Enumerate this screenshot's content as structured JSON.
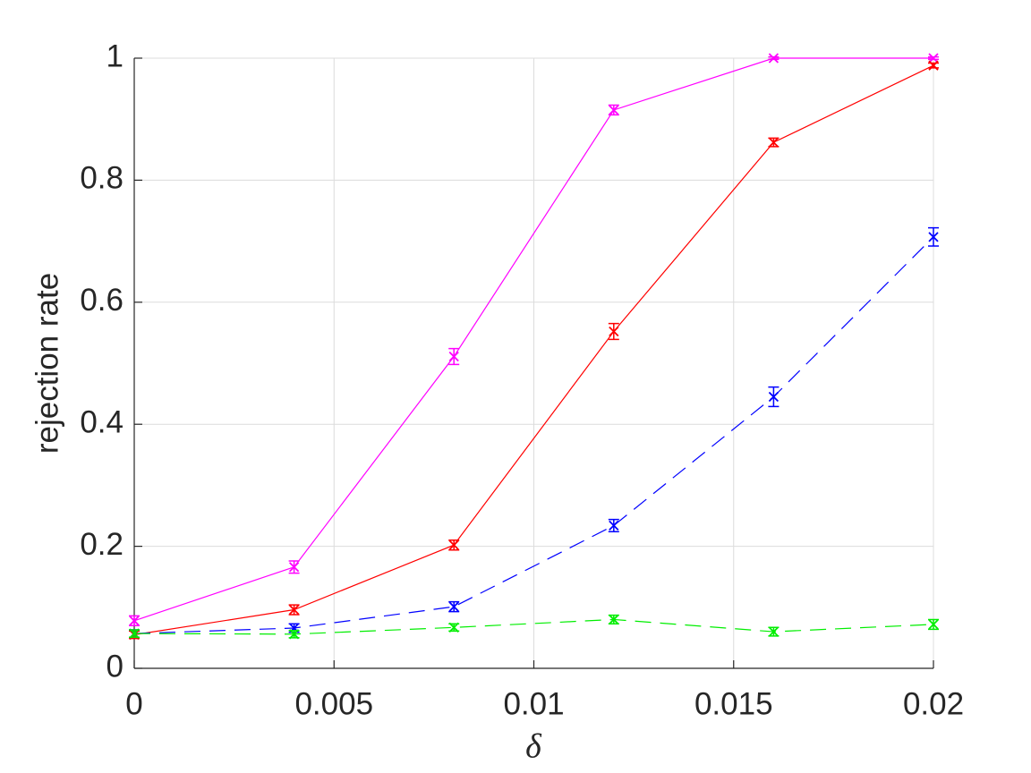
{
  "chart_data": {
    "type": "line",
    "x": [
      0,
      0.004,
      0.008,
      0.012,
      0.016,
      0.02
    ],
    "xlabel": "δ",
    "ylabel": "rejection rate",
    "xlim": [
      0,
      0.02
    ],
    "ylim": [
      0,
      1
    ],
    "xticks": [
      0,
      0.005,
      0.01,
      0.015,
      0.02
    ],
    "yticks": [
      0,
      0.2,
      0.4,
      0.6,
      0.8,
      1
    ],
    "grid": true,
    "series": [
      {
        "color": "#ff00ff",
        "dash": "solid",
        "values": [
          0.078,
          0.166,
          0.511,
          0.915,
          1.0,
          1.0
        ],
        "errors": [
          0.008,
          0.01,
          0.013,
          0.008,
          0.002,
          0.002
        ]
      },
      {
        "color": "#ff0000",
        "dash": "solid",
        "values": [
          0.055,
          0.096,
          0.202,
          0.552,
          0.862,
          0.988
        ],
        "errors": [
          0.006,
          0.008,
          0.008,
          0.013,
          0.007,
          0.004
        ]
      },
      {
        "color": "#0000ff",
        "dash": "dashed",
        "values": [
          0.057,
          0.066,
          0.101,
          0.234,
          0.445,
          0.707
        ],
        "errors": [
          0.006,
          0.007,
          0.008,
          0.01,
          0.016,
          0.015
        ]
      },
      {
        "color": "#00ee00",
        "dash": "dashed",
        "values": [
          0.057,
          0.056,
          0.067,
          0.08,
          0.06,
          0.072
        ],
        "errors": [
          0.006,
          0.006,
          0.006,
          0.007,
          0.007,
          0.008
        ]
      }
    ]
  }
}
